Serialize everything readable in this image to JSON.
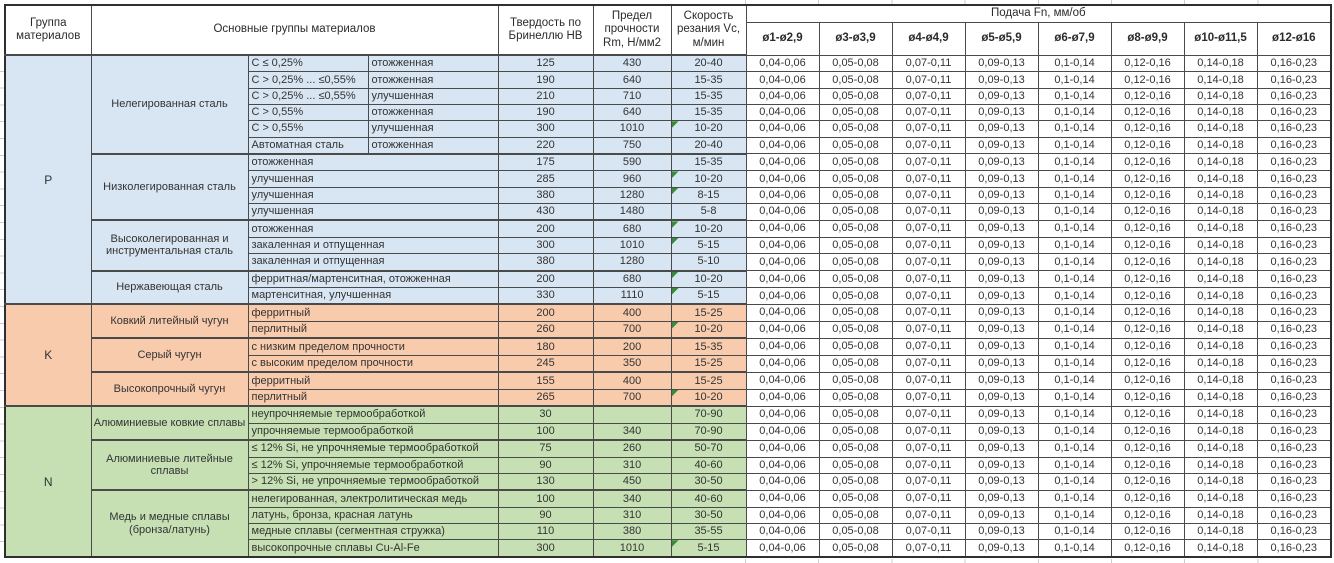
{
  "table": {
    "header": {
      "material_group": "Группа материалов",
      "main_groups": "Основные группы материалов",
      "hardness": "Твердость по Бринеллю НВ",
      "strength": "Предел прочности Rm, Н/мм2",
      "speed": "Скорость резания Vc, м/мин",
      "feed": "Подача Fn, мм/об",
      "diameters": [
        "ø1-ø2,9",
        "ø3-ø3,9",
        "ø4-ø4,9",
        "ø5-ø5,9",
        "ø6-ø7,9",
        "ø8-ø9,9",
        "ø10-ø11,5",
        "ø12-ø16"
      ]
    },
    "feed_values": [
      "0,04-0,06",
      "0,05-0,08",
      "0,07-0,11",
      "0,09-0,13",
      "0,1-0,14",
      "0,12-0,16",
      "0,14-0,18",
      "0,16-0,23"
    ],
    "colors": {
      "note_marker": "#3a8a3c"
    },
    "groups": [
      {
        "code": "P",
        "color": "#d8e5f2",
        "subgroups": [
          {
            "name": "Нелегированная сталь",
            "rows": [
              {
                "desc1": "C ≤ 0,25%",
                "desc2": "отожженная",
                "hb": "125",
                "rm": "430",
                "vc": "20-40"
              },
              {
                "desc1": "C > 0,25% ... ≤0,55%",
                "desc2": "отожженная",
                "hb": "190",
                "rm": "640",
                "vc": "15-35"
              },
              {
                "desc1": "C > 0,25% ... ≤0,55%",
                "desc2": "улучшенная",
                "hb": "210",
                "rm": "710",
                "vc": "15-35"
              },
              {
                "desc1": "C > 0,55%",
                "desc2": "отожженная",
                "hb": "190",
                "rm": "640",
                "vc": "15-35"
              },
              {
                "desc1": "C > 0,55%",
                "desc2": "улучшенная",
                "hb": "300",
                "rm": "1010",
                "vc": "10-20",
                "note": true
              },
              {
                "desc1": "Автоматная сталь",
                "desc2": "отожженная",
                "hb": "220",
                "rm": "750",
                "vc": "20-40"
              }
            ]
          },
          {
            "name": "Низколегированная сталь",
            "rows": [
              {
                "desc": "отожженная",
                "hb": "175",
                "rm": "590",
                "vc": "15-35"
              },
              {
                "desc": "улучшенная",
                "hb": "285",
                "rm": "960",
                "vc": "10-20",
                "note": true
              },
              {
                "desc": "улучшенная",
                "hb": "380",
                "rm": "1280",
                "vc": "8-15",
                "note": true
              },
              {
                "desc": "улучшенная",
                "hb": "430",
                "rm": "1480",
                "vc": "5-8"
              }
            ]
          },
          {
            "name": "Высоколегированная и инструментальная сталь",
            "rows": [
              {
                "desc": "отожженная",
                "hb": "200",
                "rm": "680",
                "vc": "10-20",
                "note": true
              },
              {
                "desc": "закаленная и отпущенная",
                "hb": "300",
                "rm": "1010",
                "vc": "5-15",
                "note": true
              },
              {
                "desc": "закаленная и отпущенная",
                "hb": "380",
                "rm": "1280",
                "vc": "5-10"
              }
            ]
          },
          {
            "name": "Нержавеющая сталь",
            "rows": [
              {
                "desc": "ферритная/мартенситная, отожженная",
                "hb": "200",
                "rm": "680",
                "vc": "10-20",
                "note": true
              },
              {
                "desc": "мартенситная, улучшенная",
                "hb": "330",
                "rm": "1110",
                "vc": "5-15",
                "note": true
              }
            ]
          }
        ]
      },
      {
        "code": "K",
        "color": "#f8cbad",
        "subgroups": [
          {
            "name": "Ковкий литейный чугун",
            "rows": [
              {
                "desc": "ферритный",
                "hb": "200",
                "rm": "400",
                "vc": "15-25"
              },
              {
                "desc": "перлитный",
                "hb": "260",
                "rm": "700",
                "vc": "10-20",
                "note": true
              }
            ]
          },
          {
            "name": "Серый чугун",
            "rows": [
              {
                "desc": "с низким пределом прочности",
                "hb": "180",
                "rm": "200",
                "vc": "15-35"
              },
              {
                "desc": "с высоким пределом прочности",
                "hb": "245",
                "rm": "350",
                "vc": "15-25"
              }
            ]
          },
          {
            "name": "Высокопрочный чугун",
            "rows": [
              {
                "desc": "ферритный",
                "hb": "155",
                "rm": "400",
                "vc": "15-25"
              },
              {
                "desc": "перлитный",
                "hb": "265",
                "rm": "700",
                "vc": "10-20",
                "note": true
              }
            ]
          }
        ]
      },
      {
        "code": "N",
        "color": "#c6e0b4",
        "subgroups": [
          {
            "name": "Алюминиевые ковкие сплавы",
            "rows": [
              {
                "desc": "неупрочняемые термообработкой",
                "hb": "30",
                "rm": "",
                "vc": "70-90"
              },
              {
                "desc": "упрочняемые термообработкой",
                "hb": "100",
                "rm": "340",
                "vc": "70-90"
              }
            ]
          },
          {
            "name": "Алюминиевые литейные сплавы",
            "rows": [
              {
                "desc": "≤ 12% Si, не упрочняемые термообработкой",
                "hb": "75",
                "rm": "260",
                "vc": "50-70"
              },
              {
                "desc": "≤ 12% Si, упрочняемые термообработкой",
                "hb": "90",
                "rm": "310",
                "vc": "40-60"
              },
              {
                "desc": "> 12% Si, не упрочняемые термообработкой",
                "hb": "130",
                "rm": "450",
                "vc": "30-50"
              }
            ]
          },
          {
            "name": "Медь и медные сплавы (бронза/латунь)",
            "rows": [
              {
                "desc": "нелегированная, электролитическая медь",
                "hb": "100",
                "rm": "340",
                "vc": "40-60"
              },
              {
                "desc": "латунь, бронза, красная латунь",
                "hb": "90",
                "rm": "310",
                "vc": "30-50"
              },
              {
                "desc": "медные сплавы (сегментная стружка)",
                "hb": "110",
                "rm": "380",
                "vc": "35-55"
              },
              {
                "desc": "высокопрочные сплавы Cu-Al-Fe",
                "hb": "300",
                "rm": "1010",
                "vc": "5-15",
                "note": true
              }
            ]
          }
        ]
      }
    ]
  }
}
